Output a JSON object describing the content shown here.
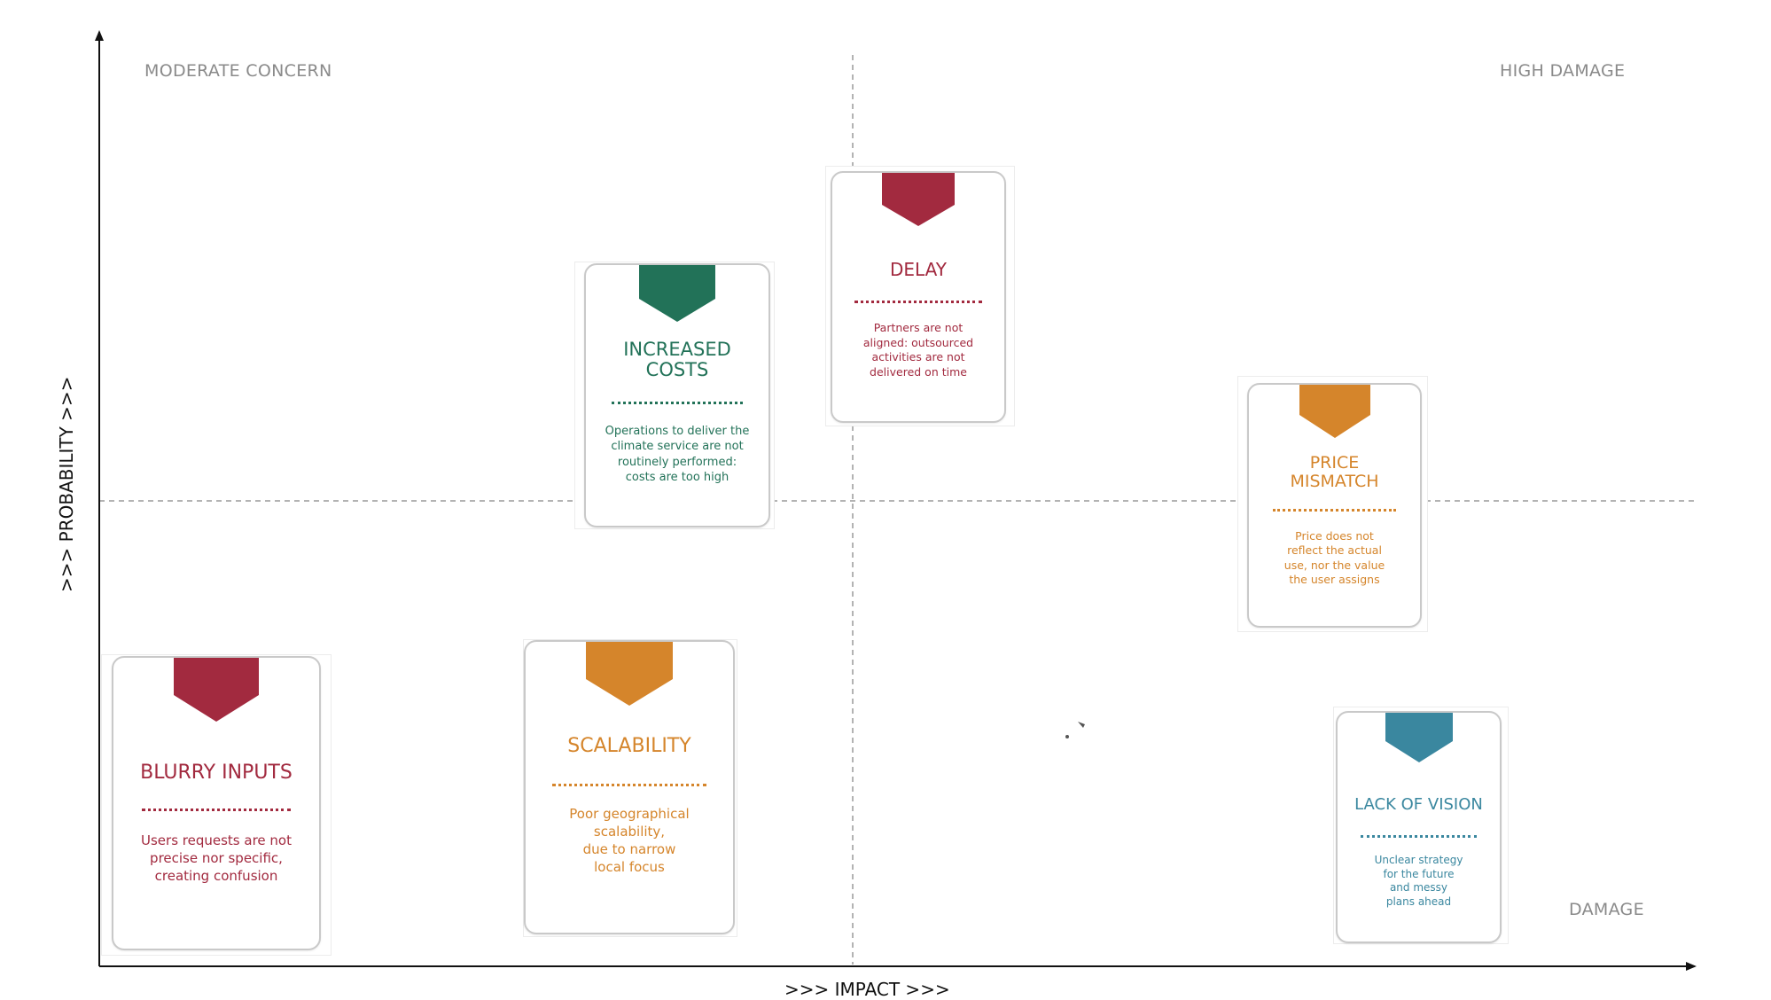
{
  "axes": {
    "x_label": ">>>  IMPACT >>>",
    "y_label": ">>>  PROBABILITY >>>"
  },
  "quadrants": {
    "top_left": "MODERATE CONCERN",
    "top_right": "HIGH DAMAGE",
    "bottom_right": "DAMAGE"
  },
  "colors": {
    "crimson": "#a22a3f",
    "green": "#227258",
    "orange": "#d5852b",
    "teal": "#3a879f"
  },
  "cards": {
    "increased_costs": {
      "title": "INCREASED\nCOSTS",
      "description": "Operations to deliver the\nclimate service are not\nroutinely performed:\ncosts are too high",
      "color": "#227258"
    },
    "delay": {
      "title": "DELAY",
      "description": "Partners are not\naligned: outsourced\nactivities are not\ndelivered on time",
      "color": "#a22a3f"
    },
    "price_mismatch": {
      "title": "PRICE\nMISMATCH",
      "description": "Price does not\nreflect the actual\nuse, nor the value\nthe user assigns",
      "color": "#d5852b"
    },
    "blurry_inputs": {
      "title": "BLURRY INPUTS",
      "description": "Users requests are not\nprecise nor specific,\ncreating confusion",
      "color": "#a22a3f"
    },
    "scalability": {
      "title": "SCALABILITY",
      "description": "Poor geographical\nscalability,\ndue to narrow\nlocal focus",
      "color": "#d5852b"
    },
    "lack_of_vision": {
      "title": "LACK OF VISION",
      "description": "Unclear strategy\nfor the future\nand messy\nplans ahead",
      "color": "#3a879f"
    }
  }
}
